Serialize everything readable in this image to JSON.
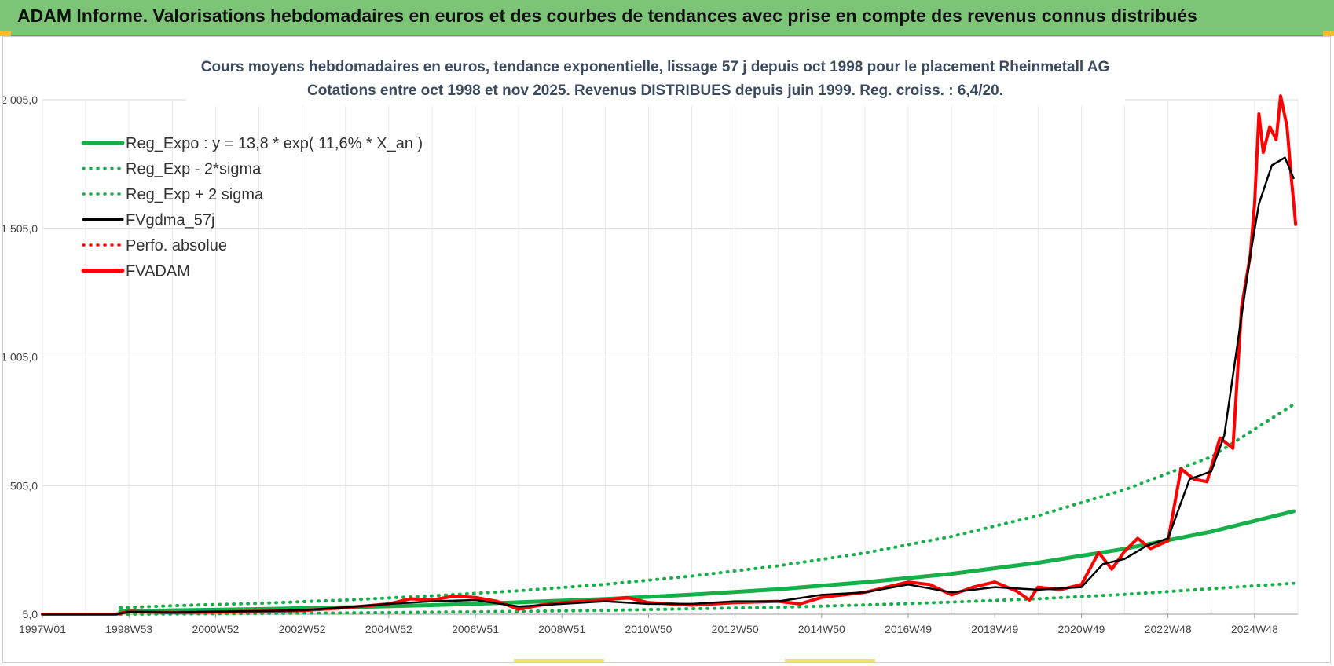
{
  "banner": {
    "title": "ADAM Informe. Valorisations hebdomadaires en euros et des courbes de tendances avec prise en compte des revenus connus distribués"
  },
  "colors": {
    "banner": "#7cc576",
    "reg_expo": "#16b04a",
    "fvadam": "#ff0000",
    "fvgdma": "#000000",
    "grid": "#d9d9d9"
  },
  "chart_data": {
    "type": "line",
    "title": "Cours moyens hebdomadaires en euros, tendance exponentielle, lissage 57 j depuis oct 1998 pour le placement Rheinmetall AG",
    "subtitle": "Cotations entre oct 1998 et nov 2025. Revenus DISTRIBUES depuis juin 1999. Reg. croiss. : 6,4/20.",
    "xlabel": "",
    "ylabel": "",
    "x_ticks": [
      "1997W01",
      "1998W53",
      "2000W52",
      "2002W52",
      "2004W52",
      "2006W51",
      "2008W51",
      "2010W50",
      "2012W50",
      "2014W50",
      "2016W49",
      "2018W49",
      "2020W49",
      "2022W48",
      "2024W48"
    ],
    "y_ticks": [
      "5,0",
      "505,0",
      "1 005,0",
      "1 505,0",
      "2 005,0"
    ],
    "xlim": [
      1997.0,
      2026.0
    ],
    "ylim": [
      5,
      2005
    ],
    "grid": true,
    "legend_position": "top-left",
    "series": [
      {
        "name": "Reg_Expo : y = 13,8 * exp( 11,6% *  X_an )",
        "style": "solid-thick",
        "x": [
          1998.8,
          2000,
          2002,
          2004,
          2006,
          2008,
          2010,
          2012,
          2014,
          2016,
          2018,
          2020,
          2022,
          2024,
          2025.9
        ],
        "values": [
          16,
          20,
          25,
          32,
          40,
          51,
          64,
          81,
          102,
          129,
          162,
          205,
          259,
          326,
          405
        ]
      },
      {
        "name": "Reg_Exp - 2*sigma",
        "style": "dotted",
        "x": [
          1998.8,
          2000,
          2002,
          2004,
          2006,
          2008,
          2010,
          2012,
          2014,
          2016,
          2018,
          2020,
          2022,
          2024,
          2025.9
        ],
        "values": [
          5,
          6,
          8,
          10,
          13,
          16,
          20,
          26,
          32,
          41,
          52,
          65,
          82,
          104,
          125
        ]
      },
      {
        "name": "Reg_Exp + 2 sigma",
        "style": "dotted",
        "x": [
          1998.8,
          2000,
          2002,
          2004,
          2006,
          2008,
          2010,
          2012,
          2014,
          2016,
          2018,
          2020,
          2022,
          2024,
          2025.9
        ],
        "values": [
          30,
          38,
          47,
          60,
          76,
          96,
          121,
          153,
          193,
          243,
          307,
          388,
          489,
          617,
          820
        ]
      },
      {
        "name": "FVgdma_57j",
        "style": "solid",
        "x": [
          1997.0,
          1998.7,
          1999.0,
          2000.0,
          2001.0,
          2002.0,
          2003.0,
          2004.0,
          2005.0,
          2006.0,
          2007.0,
          2008.0,
          2009.0,
          2010.0,
          2011.0,
          2012.0,
          2013.0,
          2014.0,
          2015.0,
          2016.0,
          2017.0,
          2018.0,
          2019.0,
          2020.0,
          2021.0,
          2021.5,
          2022.0,
          2022.5,
          2023.0,
          2023.5,
          2024.0,
          2024.3,
          2024.6,
          2024.9,
          2025.1,
          2025.4,
          2025.7,
          2025.9
        ],
        "values": [
          5,
          5,
          14,
          12,
          15,
          17,
          20,
          32,
          45,
          55,
          60,
          35,
          45,
          55,
          45,
          45,
          55,
          55,
          80,
          90,
          120,
          90,
          110,
          100,
          110,
          200,
          220,
          270,
          300,
          530,
          560,
          700,
          1050,
          1400,
          1600,
          1750,
          1780,
          1700
        ]
      },
      {
        "name": "Perfo. absolue",
        "style": "dotted",
        "x": [],
        "values": []
      },
      {
        "name": "FVADAM",
        "style": "solid-thick",
        "x": [
          1997.0,
          1998.7,
          1999.0,
          2000.0,
          2001.0,
          2002.0,
          2003.0,
          2004.0,
          2005.0,
          2005.5,
          2006.0,
          2006.5,
          2007.0,
          2007.5,
          2008.0,
          2008.5,
          2009.0,
          2010.0,
          2010.5,
          2011.0,
          2011.5,
          2012.0,
          2013.0,
          2014.0,
          2014.5,
          2015.0,
          2016.0,
          2016.5,
          2017.0,
          2017.5,
          2018.0,
          2018.5,
          2019.0,
          2019.5,
          2019.8,
          2020.0,
          2020.5,
          2021.0,
          2021.4,
          2021.7,
          2022.0,
          2022.3,
          2022.6,
          2023.0,
          2023.3,
          2023.6,
          2023.9,
          2024.2,
          2024.5,
          2024.7,
          2024.9,
          2025.0,
          2025.1,
          2025.2,
          2025.35,
          2025.5,
          2025.6,
          2025.75,
          2025.85,
          2025.95
        ],
        "values": [
          5,
          5,
          16,
          11,
          14,
          16,
          19,
          30,
          45,
          65,
          60,
          75,
          70,
          55,
          25,
          40,
          50,
          60,
          70,
          50,
          45,
          40,
          50,
          55,
          45,
          70,
          90,
          110,
          130,
          120,
          80,
          110,
          130,
          95,
          60,
          110,
          100,
          120,
          245,
          180,
          250,
          300,
          260,
          290,
          570,
          530,
          520,
          690,
          650,
          1200,
          1400,
          1600,
          1950,
          1800,
          1900,
          1850,
          2020,
          1900,
          1700,
          1520
        ]
      }
    ]
  }
}
